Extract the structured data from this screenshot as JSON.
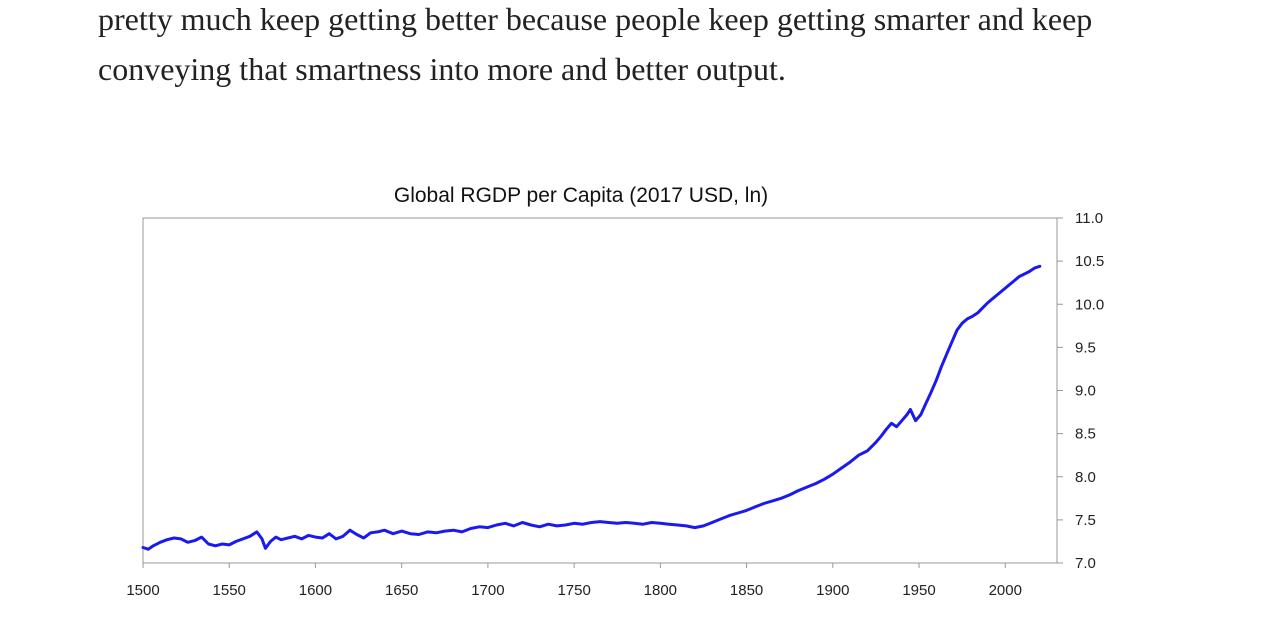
{
  "article": {
    "lines": [
      "pretty much keep getting better because people keep getting smarter and keep",
      "conveying that smartness into more and better output."
    ]
  },
  "chart_data": {
    "type": "line",
    "title": "Global RGDP per Capita (2017 USD, ln)",
    "xlabel": "",
    "ylabel": "",
    "xlim": [
      1500,
      2030
    ],
    "ylim": [
      7.0,
      11.0
    ],
    "x_ticks": [
      "1500",
      "1550",
      "1600",
      "1650",
      "1700",
      "1750",
      "1800",
      "1850",
      "1900",
      "1950",
      "2000"
    ],
    "y_ticks": [
      "7.0",
      "7.5",
      "8.0",
      "8.5",
      "9.0",
      "9.5",
      "10.0",
      "10.5",
      "11.0"
    ],
    "y_axis_side": "right",
    "grid": false,
    "legend": "none",
    "color": "#1a1aee",
    "series": [
      {
        "x": [
          1500,
          1503,
          1506,
          1510,
          1514,
          1518,
          1522,
          1526,
          1530,
          1534,
          1538,
          1542,
          1546,
          1550,
          1554,
          1558,
          1562,
          1566,
          1569,
          1571,
          1574,
          1577,
          1580,
          1584,
          1588,
          1592,
          1596,
          1600,
          1604,
          1608,
          1612,
          1616,
          1620,
          1624,
          1628,
          1632,
          1636,
          1640,
          1645,
          1650,
          1655,
          1660,
          1665,
          1670,
          1675,
          1680,
          1685,
          1690,
          1695,
          1700,
          1705,
          1710,
          1715,
          1720,
          1725,
          1730,
          1735,
          1740,
          1745,
          1750,
          1755,
          1760,
          1765,
          1770,
          1775,
          1780,
          1785,
          1790,
          1795,
          1800,
          1805,
          1810,
          1815,
          1820,
          1825,
          1830,
          1835,
          1840,
          1845,
          1850,
          1855,
          1860,
          1865,
          1870,
          1875,
          1880,
          1885,
          1890,
          1895,
          1900,
          1905,
          1910,
          1915,
          1920,
          1925,
          1928,
          1931,
          1934,
          1937,
          1940,
          1943,
          1945,
          1948,
          1951,
          1954,
          1957,
          1960,
          1963,
          1966,
          1969,
          1972,
          1975,
          1978,
          1981,
          1984,
          1987,
          1990,
          1993,
          1996,
          1999,
          2002,
          2005,
          2008,
          2011,
          2014,
          2017,
          2020
        ],
        "y": [
          7.18,
          7.16,
          7.2,
          7.24,
          7.27,
          7.29,
          7.28,
          7.24,
          7.26,
          7.3,
          7.22,
          7.2,
          7.22,
          7.21,
          7.25,
          7.28,
          7.31,
          7.36,
          7.28,
          7.17,
          7.25,
          7.3,
          7.27,
          7.29,
          7.31,
          7.28,
          7.32,
          7.3,
          7.29,
          7.34,
          7.28,
          7.31,
          7.38,
          7.33,
          7.29,
          7.35,
          7.36,
          7.38,
          7.34,
          7.37,
          7.34,
          7.33,
          7.36,
          7.35,
          7.37,
          7.38,
          7.36,
          7.4,
          7.42,
          7.41,
          7.44,
          7.46,
          7.43,
          7.47,
          7.44,
          7.42,
          7.45,
          7.43,
          7.44,
          7.46,
          7.45,
          7.47,
          7.48,
          7.47,
          7.46,
          7.47,
          7.46,
          7.45,
          7.47,
          7.46,
          7.45,
          7.44,
          7.43,
          7.41,
          7.43,
          7.47,
          7.51,
          7.55,
          7.58,
          7.61,
          7.65,
          7.69,
          7.72,
          7.75,
          7.79,
          7.84,
          7.88,
          7.92,
          7.97,
          8.03,
          8.1,
          8.17,
          8.25,
          8.3,
          8.4,
          8.47,
          8.55,
          8.62,
          8.58,
          8.65,
          8.72,
          8.78,
          8.65,
          8.72,
          8.85,
          8.98,
          9.12,
          9.28,
          9.42,
          9.56,
          9.7,
          9.78,
          9.83,
          9.86,
          9.9,
          9.96,
          10.02,
          10.07,
          10.12,
          10.17,
          10.22,
          10.27,
          10.32,
          10.35,
          10.38,
          10.42,
          10.44
        ]
      }
    ]
  }
}
